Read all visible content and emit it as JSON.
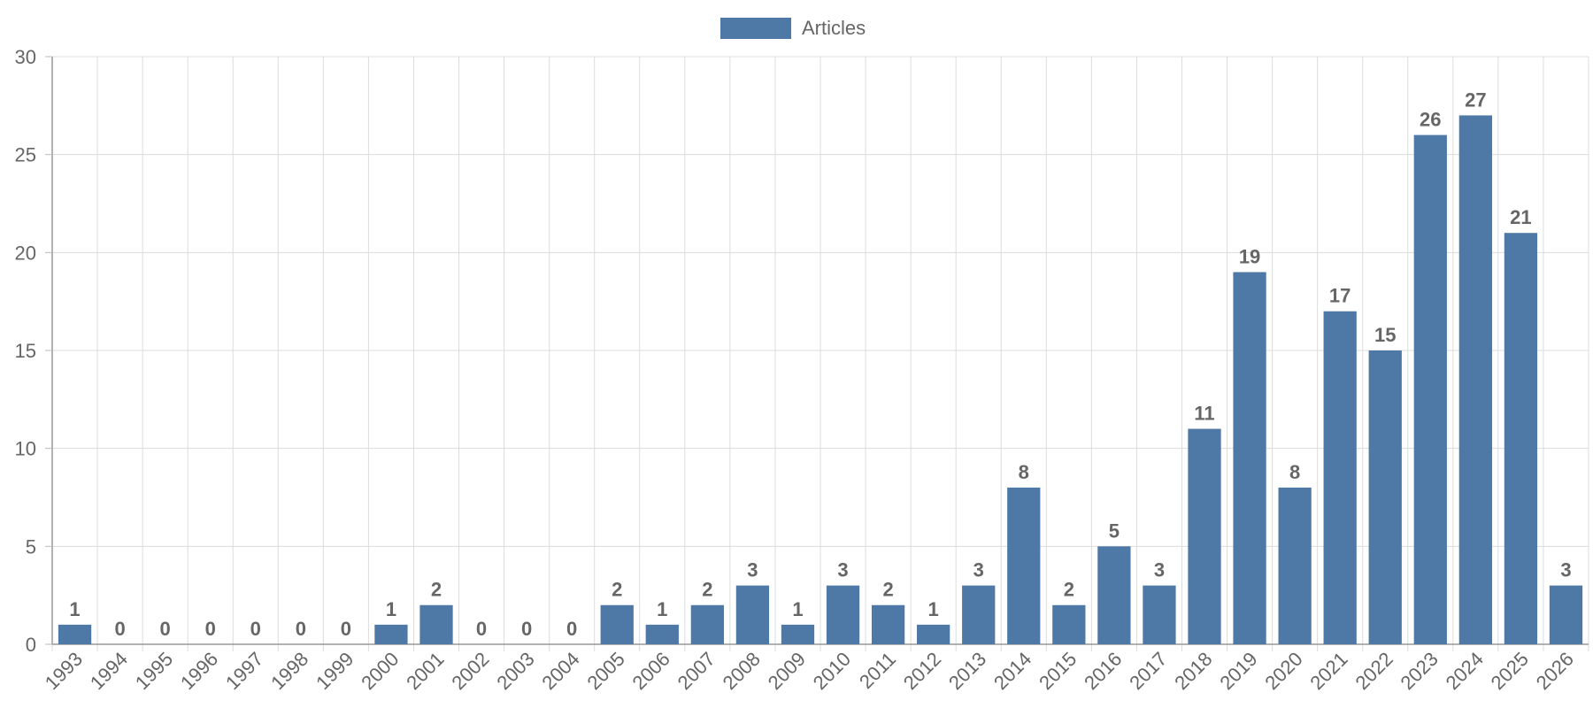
{
  "chart_data": {
    "type": "bar",
    "categories": [
      "1993",
      "1994",
      "1995",
      "1996",
      "1997",
      "1998",
      "1999",
      "2000",
      "2001",
      "2002",
      "2003",
      "2004",
      "2005",
      "2006",
      "2007",
      "2008",
      "2009",
      "2010",
      "2011",
      "2012",
      "2013",
      "2014",
      "2015",
      "2016",
      "2017",
      "2018",
      "2019",
      "2020",
      "2021",
      "2022",
      "2023",
      "2024",
      "2025",
      "2026"
    ],
    "series": [
      {
        "name": "Articles",
        "color": "#4e79a7",
        "values": [
          1,
          0,
          0,
          0,
          0,
          0,
          0,
          1,
          2,
          0,
          0,
          0,
          2,
          1,
          2,
          3,
          1,
          3,
          2,
          1,
          3,
          8,
          2,
          5,
          3,
          11,
          19,
          8,
          17,
          15,
          26,
          27,
          21,
          3
        ]
      }
    ],
    "ylim": [
      0,
      30
    ],
    "yticks": [
      0,
      5,
      10,
      15,
      20,
      25,
      30
    ],
    "grid": true,
    "legend": "top-center",
    "data_labels": true
  }
}
